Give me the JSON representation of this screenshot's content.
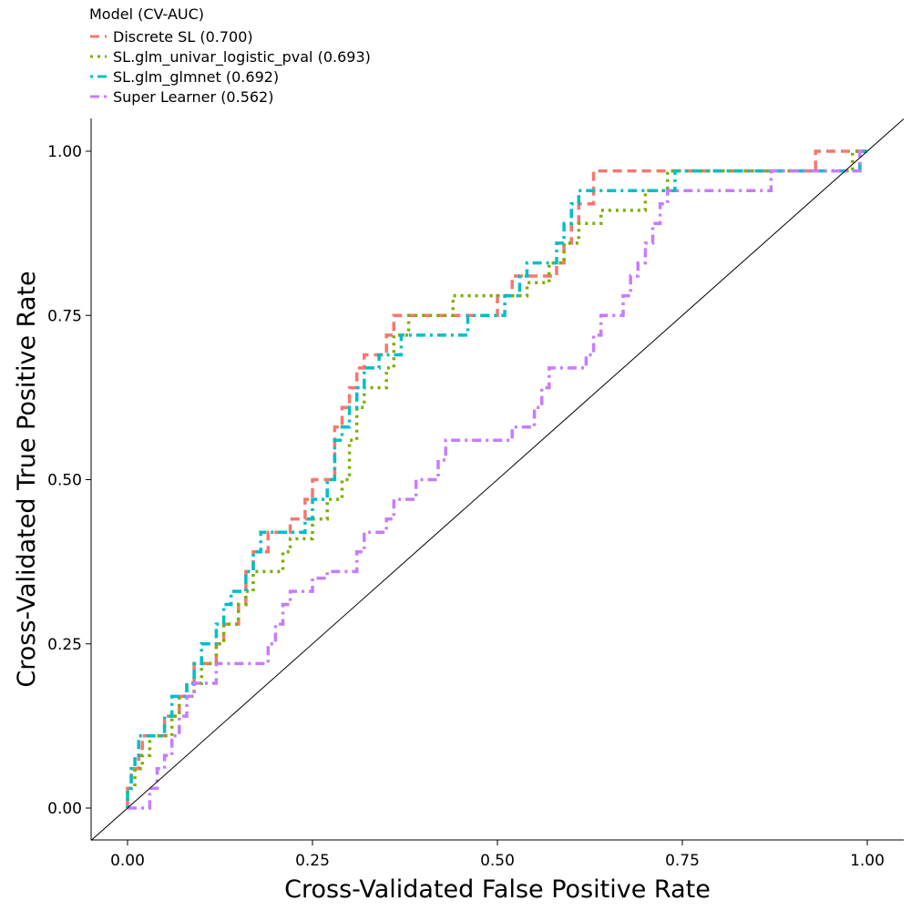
{
  "legend": {
    "title": "Model (CV-AUC)",
    "items": [
      {
        "label": "Discrete SL (0.700)",
        "color": "#F8766D",
        "dash": "10,6"
      },
      {
        "label": "SL.glm_univar_logistic_pval (0.693)",
        "color": "#7CAE00",
        "dash": "3,5"
      },
      {
        "label": "SL.glm_glmnet (0.692)",
        "color": "#00BFC4",
        "dash": "3,5,10,5"
      },
      {
        "label": "Super Learner (0.562)",
        "color": "#C77CFF",
        "dash": "10,5,3,5"
      }
    ]
  },
  "chart_data": {
    "type": "line",
    "xlabel": "Cross-Validated False Positive Rate",
    "ylabel": "Cross-Validated True Positive Rate",
    "xlim": [
      0,
      1
    ],
    "ylim": [
      0,
      1
    ],
    "x_ticks": [
      "0.00",
      "0.25",
      "0.50",
      "0.75",
      "1.00"
    ],
    "y_ticks": [
      "0.00",
      "0.25",
      "0.50",
      "0.75",
      "1.00"
    ],
    "grid": false,
    "diagonal_reference_line": true,
    "series": [
      {
        "name": "Discrete SL (0.700)",
        "color": "#F8766D",
        "points": [
          [
            0,
            0
          ],
          [
            0,
            0.03
          ],
          [
            0.005,
            0.03
          ],
          [
            0.005,
            0.06
          ],
          [
            0.015,
            0.06
          ],
          [
            0.015,
            0.08
          ],
          [
            0.02,
            0.08
          ],
          [
            0.02,
            0.11
          ],
          [
            0.05,
            0.11
          ],
          [
            0.05,
            0.14
          ],
          [
            0.07,
            0.14
          ],
          [
            0.07,
            0.17
          ],
          [
            0.08,
            0.17
          ],
          [
            0.08,
            0.19
          ],
          [
            0.09,
            0.19
          ],
          [
            0.09,
            0.22
          ],
          [
            0.12,
            0.22
          ],
          [
            0.12,
            0.25
          ],
          [
            0.13,
            0.25
          ],
          [
            0.13,
            0.28
          ],
          [
            0.15,
            0.28
          ],
          [
            0.15,
            0.31
          ],
          [
            0.16,
            0.31
          ],
          [
            0.16,
            0.36
          ],
          [
            0.17,
            0.36
          ],
          [
            0.17,
            0.39
          ],
          [
            0.19,
            0.39
          ],
          [
            0.19,
            0.42
          ],
          [
            0.22,
            0.42
          ],
          [
            0.22,
            0.44
          ],
          [
            0.24,
            0.44
          ],
          [
            0.24,
            0.47
          ],
          [
            0.25,
            0.47
          ],
          [
            0.25,
            0.5
          ],
          [
            0.28,
            0.5
          ],
          [
            0.28,
            0.58
          ],
          [
            0.29,
            0.58
          ],
          [
            0.29,
            0.61
          ],
          [
            0.3,
            0.61
          ],
          [
            0.3,
            0.64
          ],
          [
            0.31,
            0.64
          ],
          [
            0.31,
            0.67
          ],
          [
            0.32,
            0.67
          ],
          [
            0.32,
            0.69
          ],
          [
            0.35,
            0.69
          ],
          [
            0.35,
            0.72
          ],
          [
            0.36,
            0.72
          ],
          [
            0.36,
            0.75
          ],
          [
            0.5,
            0.75
          ],
          [
            0.5,
            0.78
          ],
          [
            0.52,
            0.78
          ],
          [
            0.52,
            0.81
          ],
          [
            0.58,
            0.81
          ],
          [
            0.58,
            0.83
          ],
          [
            0.59,
            0.83
          ],
          [
            0.59,
            0.86
          ],
          [
            0.6,
            0.86
          ],
          [
            0.6,
            0.89
          ],
          [
            0.61,
            0.89
          ],
          [
            0.61,
            0.92
          ],
          [
            0.63,
            0.92
          ],
          [
            0.63,
            0.97
          ],
          [
            0.93,
            0.97
          ],
          [
            0.93,
            1
          ],
          [
            1,
            1
          ]
        ]
      },
      {
        "name": "SL.glm_univar_logistic_pval (0.693)",
        "color": "#7CAE00",
        "points": [
          [
            0,
            0
          ],
          [
            0,
            0.03
          ],
          [
            0.01,
            0.03
          ],
          [
            0.01,
            0.06
          ],
          [
            0.02,
            0.06
          ],
          [
            0.02,
            0.08
          ],
          [
            0.03,
            0.08
          ],
          [
            0.03,
            0.11
          ],
          [
            0.06,
            0.11
          ],
          [
            0.06,
            0.14
          ],
          [
            0.07,
            0.14
          ],
          [
            0.07,
            0.17
          ],
          [
            0.09,
            0.17
          ],
          [
            0.09,
            0.19
          ],
          [
            0.1,
            0.19
          ],
          [
            0.1,
            0.22
          ],
          [
            0.12,
            0.22
          ],
          [
            0.12,
            0.25
          ],
          [
            0.13,
            0.25
          ],
          [
            0.13,
            0.28
          ],
          [
            0.15,
            0.28
          ],
          [
            0.15,
            0.31
          ],
          [
            0.16,
            0.31
          ],
          [
            0.16,
            0.33
          ],
          [
            0.17,
            0.33
          ],
          [
            0.17,
            0.36
          ],
          [
            0.21,
            0.36
          ],
          [
            0.21,
            0.39
          ],
          [
            0.22,
            0.39
          ],
          [
            0.22,
            0.41
          ],
          [
            0.25,
            0.41
          ],
          [
            0.25,
            0.44
          ],
          [
            0.27,
            0.44
          ],
          [
            0.27,
            0.47
          ],
          [
            0.29,
            0.47
          ],
          [
            0.29,
            0.5
          ],
          [
            0.3,
            0.5
          ],
          [
            0.3,
            0.56
          ],
          [
            0.31,
            0.56
          ],
          [
            0.31,
            0.61
          ],
          [
            0.32,
            0.61
          ],
          [
            0.32,
            0.64
          ],
          [
            0.35,
            0.64
          ],
          [
            0.35,
            0.67
          ],
          [
            0.36,
            0.67
          ],
          [
            0.36,
            0.72
          ],
          [
            0.38,
            0.72
          ],
          [
            0.38,
            0.75
          ],
          [
            0.44,
            0.75
          ],
          [
            0.44,
            0.78
          ],
          [
            0.54,
            0.78
          ],
          [
            0.54,
            0.8
          ],
          [
            0.57,
            0.8
          ],
          [
            0.57,
            0.83
          ],
          [
            0.59,
            0.83
          ],
          [
            0.59,
            0.86
          ],
          [
            0.61,
            0.86
          ],
          [
            0.61,
            0.89
          ],
          [
            0.64,
            0.89
          ],
          [
            0.64,
            0.91
          ],
          [
            0.7,
            0.91
          ],
          [
            0.7,
            0.94
          ],
          [
            0.73,
            0.94
          ],
          [
            0.73,
            0.97
          ],
          [
            0.98,
            0.97
          ],
          [
            0.98,
            1
          ],
          [
            1,
            1
          ]
        ]
      },
      {
        "name": "SL.glm_glmnet (0.692)",
        "color": "#00BFC4",
        "points": [
          [
            0,
            0
          ],
          [
            0,
            0.03
          ],
          [
            0.005,
            0.03
          ],
          [
            0.005,
            0.06
          ],
          [
            0.01,
            0.06
          ],
          [
            0.01,
            0.08
          ],
          [
            0.015,
            0.08
          ],
          [
            0.015,
            0.11
          ],
          [
            0.05,
            0.11
          ],
          [
            0.05,
            0.14
          ],
          [
            0.06,
            0.14
          ],
          [
            0.06,
            0.17
          ],
          [
            0.08,
            0.17
          ],
          [
            0.08,
            0.19
          ],
          [
            0.09,
            0.19
          ],
          [
            0.09,
            0.22
          ],
          [
            0.1,
            0.22
          ],
          [
            0.1,
            0.25
          ],
          [
            0.12,
            0.25
          ],
          [
            0.12,
            0.28
          ],
          [
            0.13,
            0.28
          ],
          [
            0.13,
            0.31
          ],
          [
            0.14,
            0.31
          ],
          [
            0.14,
            0.33
          ],
          [
            0.16,
            0.33
          ],
          [
            0.16,
            0.36
          ],
          [
            0.17,
            0.36
          ],
          [
            0.17,
            0.39
          ],
          [
            0.18,
            0.39
          ],
          [
            0.18,
            0.42
          ],
          [
            0.24,
            0.42
          ],
          [
            0.24,
            0.44
          ],
          [
            0.25,
            0.44
          ],
          [
            0.25,
            0.47
          ],
          [
            0.27,
            0.47
          ],
          [
            0.27,
            0.5
          ],
          [
            0.28,
            0.5
          ],
          [
            0.28,
            0.56
          ],
          [
            0.29,
            0.56
          ],
          [
            0.29,
            0.58
          ],
          [
            0.3,
            0.58
          ],
          [
            0.3,
            0.61
          ],
          [
            0.31,
            0.61
          ],
          [
            0.31,
            0.64
          ],
          [
            0.32,
            0.64
          ],
          [
            0.32,
            0.67
          ],
          [
            0.34,
            0.67
          ],
          [
            0.34,
            0.69
          ],
          [
            0.37,
            0.69
          ],
          [
            0.37,
            0.72
          ],
          [
            0.46,
            0.72
          ],
          [
            0.46,
            0.75
          ],
          [
            0.51,
            0.75
          ],
          [
            0.51,
            0.78
          ],
          [
            0.53,
            0.78
          ],
          [
            0.53,
            0.81
          ],
          [
            0.54,
            0.81
          ],
          [
            0.54,
            0.83
          ],
          [
            0.58,
            0.83
          ],
          [
            0.58,
            0.86
          ],
          [
            0.59,
            0.86
          ],
          [
            0.59,
            0.89
          ],
          [
            0.6,
            0.89
          ],
          [
            0.6,
            0.92
          ],
          [
            0.61,
            0.92
          ],
          [
            0.61,
            0.94
          ],
          [
            0.74,
            0.94
          ],
          [
            0.74,
            0.97
          ],
          [
            0.99,
            0.97
          ],
          [
            0.99,
            1
          ],
          [
            1,
            1
          ]
        ]
      },
      {
        "name": "Super Learner (0.562)",
        "color": "#C77CFF",
        "points": [
          [
            0,
            0
          ],
          [
            0.03,
            0
          ],
          [
            0.03,
            0.03
          ],
          [
            0.04,
            0.03
          ],
          [
            0.04,
            0.06
          ],
          [
            0.05,
            0.06
          ],
          [
            0.05,
            0.08
          ],
          [
            0.06,
            0.08
          ],
          [
            0.06,
            0.11
          ],
          [
            0.07,
            0.11
          ],
          [
            0.07,
            0.14
          ],
          [
            0.08,
            0.14
          ],
          [
            0.08,
            0.17
          ],
          [
            0.09,
            0.17
          ],
          [
            0.09,
            0.19
          ],
          [
            0.12,
            0.19
          ],
          [
            0.12,
            0.22
          ],
          [
            0.19,
            0.22
          ],
          [
            0.19,
            0.25
          ],
          [
            0.2,
            0.25
          ],
          [
            0.2,
            0.28
          ],
          [
            0.21,
            0.28
          ],
          [
            0.21,
            0.31
          ],
          [
            0.22,
            0.31
          ],
          [
            0.22,
            0.33
          ],
          [
            0.25,
            0.33
          ],
          [
            0.25,
            0.35
          ],
          [
            0.27,
            0.35
          ],
          [
            0.27,
            0.36
          ],
          [
            0.31,
            0.36
          ],
          [
            0.31,
            0.39
          ],
          [
            0.32,
            0.39
          ],
          [
            0.32,
            0.42
          ],
          [
            0.35,
            0.42
          ],
          [
            0.35,
            0.44
          ],
          [
            0.36,
            0.44
          ],
          [
            0.36,
            0.47
          ],
          [
            0.39,
            0.47
          ],
          [
            0.39,
            0.5
          ],
          [
            0.42,
            0.5
          ],
          [
            0.42,
            0.53
          ],
          [
            0.43,
            0.53
          ],
          [
            0.43,
            0.56
          ],
          [
            0.52,
            0.56
          ],
          [
            0.52,
            0.58
          ],
          [
            0.55,
            0.58
          ],
          [
            0.55,
            0.61
          ],
          [
            0.56,
            0.61
          ],
          [
            0.56,
            0.64
          ],
          [
            0.57,
            0.64
          ],
          [
            0.57,
            0.67
          ],
          [
            0.62,
            0.67
          ],
          [
            0.62,
            0.69
          ],
          [
            0.63,
            0.69
          ],
          [
            0.63,
            0.72
          ],
          [
            0.64,
            0.72
          ],
          [
            0.64,
            0.75
          ],
          [
            0.67,
            0.75
          ],
          [
            0.67,
            0.78
          ],
          [
            0.68,
            0.78
          ],
          [
            0.68,
            0.81
          ],
          [
            0.69,
            0.81
          ],
          [
            0.69,
            0.83
          ],
          [
            0.7,
            0.83
          ],
          [
            0.7,
            0.86
          ],
          [
            0.71,
            0.86
          ],
          [
            0.71,
            0.89
          ],
          [
            0.72,
            0.89
          ],
          [
            0.72,
            0.92
          ],
          [
            0.73,
            0.92
          ],
          [
            0.73,
            0.94
          ],
          [
            0.87,
            0.94
          ],
          [
            0.87,
            0.97
          ],
          [
            0.99,
            0.97
          ],
          [
            0.99,
            1
          ],
          [
            1,
            1
          ]
        ]
      }
    ]
  }
}
